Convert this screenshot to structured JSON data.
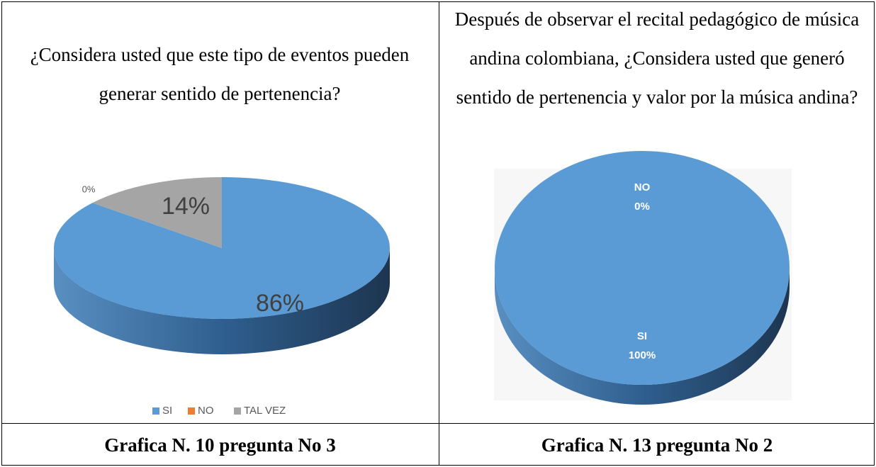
{
  "chart_data": [
    {
      "type": "pie",
      "title": "¿Considera usted que este tipo de eventos pueden generar sentido de pertenencia?",
      "categories": [
        "SI",
        "NO",
        "TAL VEZ"
      ],
      "values": [
        86,
        0,
        14
      ],
      "value_labels": [
        "86%",
        "0%",
        "14%"
      ],
      "colors": [
        "#5b9bd5",
        "#ed7d31",
        "#a5a5a5"
      ],
      "legend": "bottom"
    },
    {
      "type": "pie",
      "title": "Después de observar el recital pedagógico de música andina colombiana, ¿Considera usted que generó sentido de pertenencia y valor por la música andina?",
      "categories": [
        "SI",
        "NO"
      ],
      "values": [
        100,
        0
      ],
      "value_labels": [
        "100%",
        "0%"
      ],
      "colors": [
        "#5b9bd5",
        "#ed7d31"
      ]
    }
  ],
  "captions": [
    "Grafica N. 10 pregunta No 3",
    "Grafica N. 13 pregunta No 2"
  ]
}
